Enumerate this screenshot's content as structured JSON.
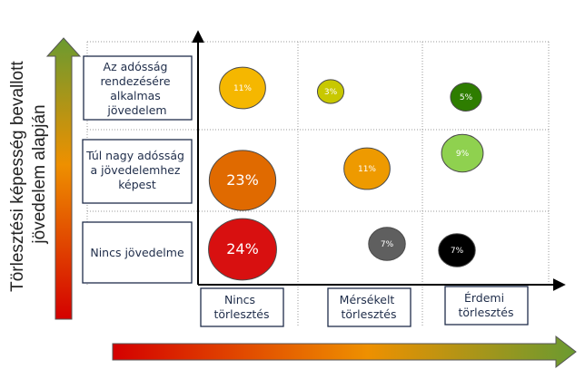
{
  "chart_data": {
    "type": "bubble-matrix",
    "y_axis_label_lines": [
      "Törlesztési képesség bevallott",
      "jövedelem alapján"
    ],
    "rows": [
      {
        "label_lines": [
          "Az adósság",
          "rendezésére",
          "alkalmas",
          "jövedelem"
        ]
      },
      {
        "label_lines": [
          "Túl nagy adósság",
          "a jövedelemhez",
          "képest"
        ]
      },
      {
        "label_lines": [
          "Nincs jövedelme"
        ]
      }
    ],
    "columns": [
      {
        "label_lines": [
          "Nincs",
          "törlesztés"
        ]
      },
      {
        "label_lines": [
          "Mérsékelt",
          "törlesztés"
        ]
      },
      {
        "label_lines": [
          "Érdemi",
          "törlesztés"
        ]
      }
    ],
    "bubbles": [
      {
        "row": 0,
        "col": 0,
        "value": 11,
        "label": "11%",
        "color": "#f5b700"
      },
      {
        "row": 0,
        "col": 1,
        "value": 3,
        "label": "3%",
        "color": "#c8c800"
      },
      {
        "row": 0,
        "col": 2,
        "value": 5,
        "label": "5%",
        "color": "#2e7d00"
      },
      {
        "row": 1,
        "col": 0,
        "value": 23,
        "label": "23%",
        "color": "#e06a00"
      },
      {
        "row": 1,
        "col": 1,
        "value": 11,
        "label": "11%",
        "color": "#ee9a00"
      },
      {
        "row": 1,
        "col": 2,
        "value": 9,
        "label": "9%",
        "color": "#8fd14f"
      },
      {
        "row": 2,
        "col": 0,
        "value": 24,
        "label": "24%",
        "color": "#d81010"
      },
      {
        "row": 2,
        "col": 1,
        "value": 7,
        "label": "7%",
        "color": "#5f5f5f"
      },
      {
        "row": 2,
        "col": 2,
        "value": 7,
        "label": "7%",
        "color": "#000000"
      }
    ],
    "y_arrow_colors": [
      "#d40000",
      "#ee9000",
      "#6a9a30"
    ],
    "x_arrow_colors": [
      "#d40000",
      "#ee9000",
      "#6a9a30"
    ],
    "grid": true
  }
}
